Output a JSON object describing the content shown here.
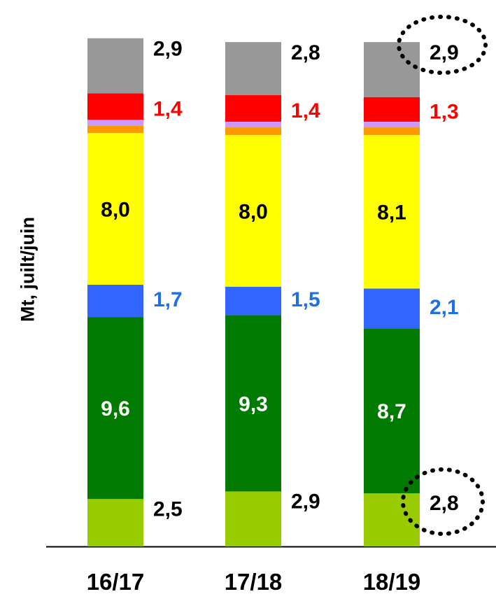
{
  "chart_data": {
    "type": "bar",
    "stacked": true,
    "ylabel": "Mt, juilt/juin",
    "categories": [
      "16/17",
      "17/18",
      "18/19"
    ],
    "series": [
      {
        "values": [
          2.5,
          2.9,
          2.8
        ],
        "color": "#99cc00",
        "label_color": "#000000"
      },
      {
        "values": [
          9.6,
          9.3,
          8.7
        ],
        "color": "#007a00",
        "label_color": "#ffffff"
      },
      {
        "values": [
          1.7,
          1.5,
          2.1
        ],
        "color": "#3366ff",
        "label_color": "#1f6fe6"
      },
      {
        "values": [
          8.0,
          8.0,
          8.1
        ],
        "color": "#ffff00",
        "label_color": "#000000"
      },
      {
        "values": [
          0.4,
          0.4,
          0.4
        ],
        "color": "#ff9900",
        "label_color": null
      },
      {
        "values": [
          0.3,
          0.3,
          0.3
        ],
        "color": "#cc99ff",
        "label_color": null
      },
      {
        "values": [
          1.4,
          1.4,
          1.3
        ],
        "color": "#ff0000",
        "label_color": "#ff0000"
      },
      {
        "values": [
          2.9,
          2.8,
          2.9
        ],
        "color": "#999999",
        "label_color": "#000000"
      }
    ],
    "value_labels": [
      [
        "2,5",
        "9,6",
        "1,7",
        "8,0",
        "",
        "",
        "1,4",
        "2,9"
      ],
      [
        "2,9",
        "9,3",
        "1,5",
        "8,0",
        "",
        "",
        "1,4",
        "2,8"
      ],
      [
        "2,8",
        "8,7",
        "2,1",
        "8,1",
        "",
        "",
        "1,3",
        "2,9"
      ]
    ],
    "highlighted_labels": [
      "18/19 top 2,9",
      "18/19 bottom 2,8"
    ],
    "legend": "none",
    "grid": false
  }
}
